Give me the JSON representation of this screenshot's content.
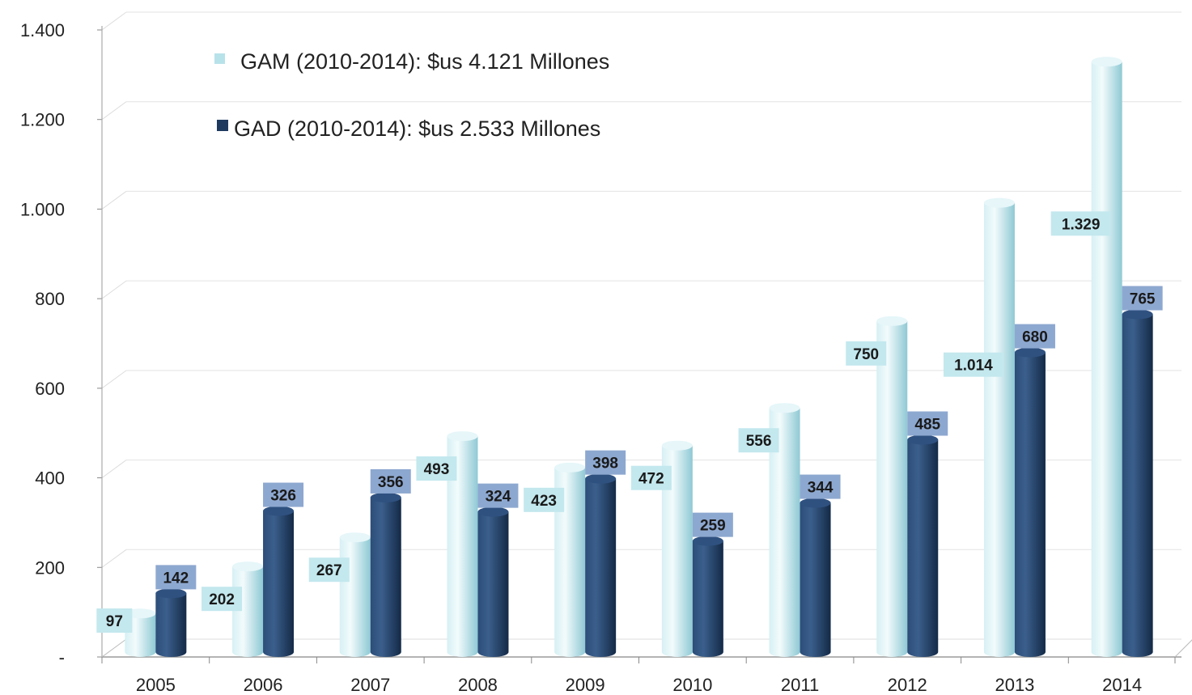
{
  "chart_data": {
    "type": "bar",
    "categories": [
      "2005",
      "2006",
      "2007",
      "2008",
      "2009",
      "2010",
      "2011",
      "2012",
      "2013",
      "2014"
    ],
    "series": [
      {
        "name": "GAM (2010-2014): $us 4.121 Millones",
        "values": [
          97,
          202,
          267,
          493,
          423,
          472,
          556,
          750,
          1014,
          1329
        ],
        "labels": [
          "97",
          "202",
          "267",
          "493",
          "423",
          "472",
          "556",
          "750",
          "1.014",
          "1.329"
        ],
        "color": "#b8e2ea",
        "label_bg": "#c3e8ee"
      },
      {
        "name": "GAD (2010-2014): $us 2.533 Millones",
        "values": [
          142,
          326,
          356,
          324,
          398,
          259,
          344,
          485,
          680,
          765
        ],
        "labels": [
          "142",
          "326",
          "356",
          "324",
          "398",
          "259",
          "344",
          "485",
          "680",
          "765"
        ],
        "color": "#1e3a5f",
        "label_bg": "#8da8d0"
      }
    ],
    "title": "",
    "xlabel": "",
    "ylabel": "",
    "ylim": [
      0,
      1400
    ],
    "yticks": [
      0,
      200,
      400,
      600,
      800,
      1000,
      1200,
      1400
    ],
    "ytick_labels": [
      "-",
      "200",
      "400",
      "600",
      "800",
      "1.000",
      "1.200",
      "1.400"
    ],
    "grid": true,
    "legend_position": "top-left"
  }
}
